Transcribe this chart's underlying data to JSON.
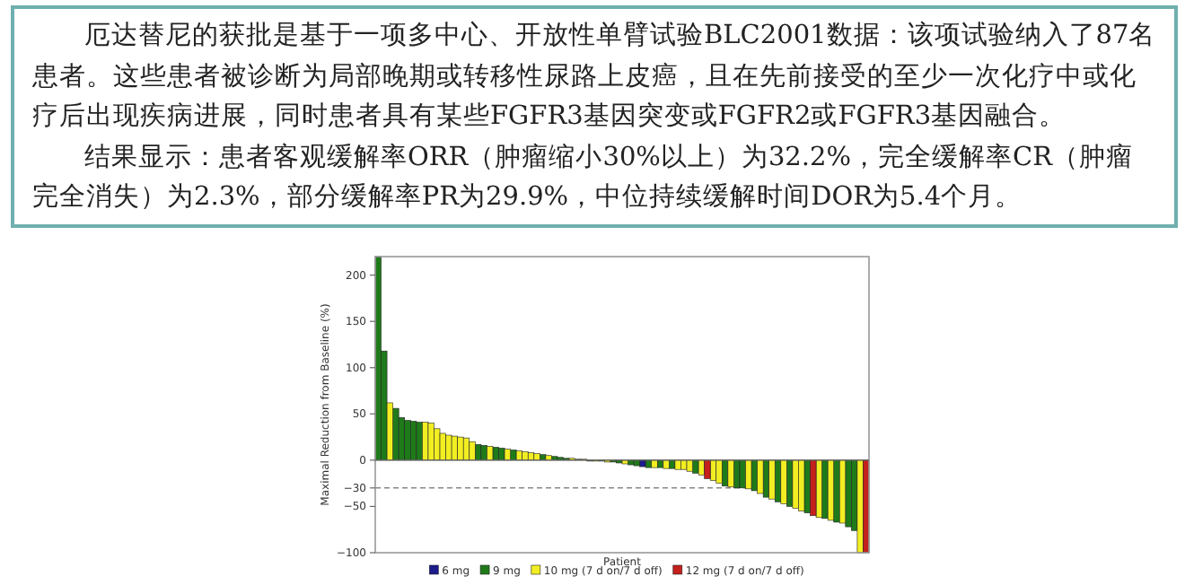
{
  "chart_data": {
    "type": "bar",
    "stacked": true,
    "annotations": [
      "厄达替尼的获批是基于一项多中心、开放性单臂试验BLC2001数据：该项试验纳入了87名患者。这些患者被诊断为局部晚期或转移性尿路上皮癌，且在先前接受的至少一次化疗中或化疗后出现疾病进展，同时患者具有某些FGFR3基因突变或FGFR2或FGFR3基因融合。",
      "结果显示：患者客观缓解率ORR（肿瘤缩小30%以上）为32.2%，完全缓解率CR（肿瘤完全消失）为2.3%，部分缓解率PR为29.9%，中位持续缓解时间DOR为5.4个月。"
    ],
    "xlabel": "Patient",
    "ylabel": "Maximal Reduction from Baseline (%)",
    "categories": [
      null,
      null,
      null,
      null,
      null,
      null,
      null,
      null,
      null,
      null,
      null,
      null,
      null,
      null,
      null,
      null,
      null,
      null,
      null,
      null,
      null,
      null,
      null,
      null,
      null,
      null,
      null,
      null,
      null,
      null,
      null,
      null,
      null,
      null,
      null,
      null,
      null,
      null,
      null,
      null,
      null,
      null,
      null,
      null,
      null,
      null,
      null,
      null,
      null,
      null,
      null,
      null,
      null,
      null,
      null,
      null,
      null,
      null,
      null,
      null,
      null,
      null,
      null,
      null,
      null,
      null,
      null,
      null,
      null,
      null,
      null,
      null,
      null,
      null,
      null,
      null,
      null,
      null,
      null,
      null,
      null,
      null,
      null,
      null
    ],
    "ylim": [
      -100,
      220
    ],
    "yticks": [
      -100,
      -50,
      -30,
      0,
      50,
      100,
      150,
      200
    ],
    "grid": false,
    "legend": "bottom",
    "ref_lines": [
      {
        "axis": "y",
        "value": -30,
        "color": "#888888",
        "line_style": "dashed"
      }
    ],
    "series": [
      {
        "name": "6 mg",
        "color": "#1c1c8a",
        "values": [
          null,
          null,
          null,
          null,
          null,
          null,
          null,
          null,
          null,
          null,
          null,
          null,
          null,
          null,
          null,
          null,
          null,
          null,
          null,
          null,
          null,
          null,
          null,
          null,
          null,
          null,
          null,
          null,
          null,
          null,
          null,
          null,
          null,
          null,
          null,
          null,
          null,
          null,
          null,
          null,
          null,
          null,
          null,
          null,
          null,
          -7,
          null,
          null,
          null,
          null,
          null,
          null,
          null,
          null,
          null,
          null,
          null,
          null,
          null,
          null,
          null,
          null,
          null,
          null,
          null,
          null,
          null,
          null,
          null,
          null,
          null,
          null,
          null,
          null,
          null,
          null,
          null,
          null,
          null,
          null,
          null,
          null,
          null,
          null
        ]
      },
      {
        "name": "9 mg",
        "color": "#1f7a1a",
        "values": [
          220,
          118,
          null,
          56,
          46,
          43,
          42,
          41,
          null,
          null,
          null,
          null,
          null,
          null,
          null,
          null,
          null,
          17,
          16,
          null,
          14,
          13,
          null,
          11,
          null,
          null,
          null,
          null,
          6,
          null,
          4,
          3,
          2,
          null,
          1,
          null,
          -1,
          null,
          -1,
          null,
          -2,
          -3,
          null,
          -5,
          -6,
          null,
          -8,
          null,
          -8,
          null,
          -9,
          null,
          null,
          null,
          -14,
          null,
          null,
          null,
          null,
          -28,
          null,
          -30,
          -30,
          null,
          -33,
          null,
          -40,
          null,
          -45,
          null,
          -50,
          null,
          null,
          -57,
          null,
          null,
          -63,
          null,
          -67,
          null,
          -72,
          -76,
          null,
          null
        ]
      },
      {
        "name": "10 mg (7 d on/7 d off)",
        "color": "#f2ee22",
        "values": [
          null,
          null,
          62,
          null,
          null,
          null,
          null,
          null,
          41,
          40,
          34,
          29,
          27,
          26,
          25,
          24,
          20,
          null,
          null,
          15,
          null,
          null,
          12,
          null,
          10,
          9,
          8,
          7,
          null,
          5,
          null,
          null,
          null,
          2,
          null,
          1,
          null,
          -1,
          null,
          -2,
          null,
          null,
          -4,
          null,
          null,
          null,
          null,
          -8,
          null,
          -9,
          null,
          -10,
          -10,
          -12,
          null,
          -16,
          null,
          -22,
          -25,
          null,
          -29,
          null,
          null,
          -31,
          null,
          -36,
          null,
          -42,
          null,
          -47,
          null,
          -52,
          -55,
          null,
          null,
          -62,
          null,
          -65,
          null,
          -68,
          null,
          null,
          -100,
          null
        ]
      },
      {
        "name": "12 mg (7 d on/7 d off)",
        "color": "#c4201c",
        "values": [
          null,
          null,
          null,
          null,
          null,
          null,
          null,
          null,
          null,
          null,
          null,
          null,
          null,
          null,
          null,
          null,
          null,
          null,
          null,
          null,
          null,
          null,
          null,
          null,
          null,
          null,
          null,
          null,
          null,
          null,
          null,
          null,
          null,
          null,
          null,
          null,
          null,
          null,
          null,
          null,
          null,
          null,
          null,
          null,
          null,
          null,
          null,
          null,
          null,
          null,
          null,
          null,
          null,
          null,
          null,
          null,
          -20,
          null,
          null,
          null,
          null,
          null,
          null,
          null,
          null,
          null,
          null,
          null,
          null,
          null,
          null,
          null,
          null,
          null,
          -60,
          null,
          null,
          null,
          null,
          null,
          null,
          null,
          null,
          -100
        ]
      }
    ]
  }
}
